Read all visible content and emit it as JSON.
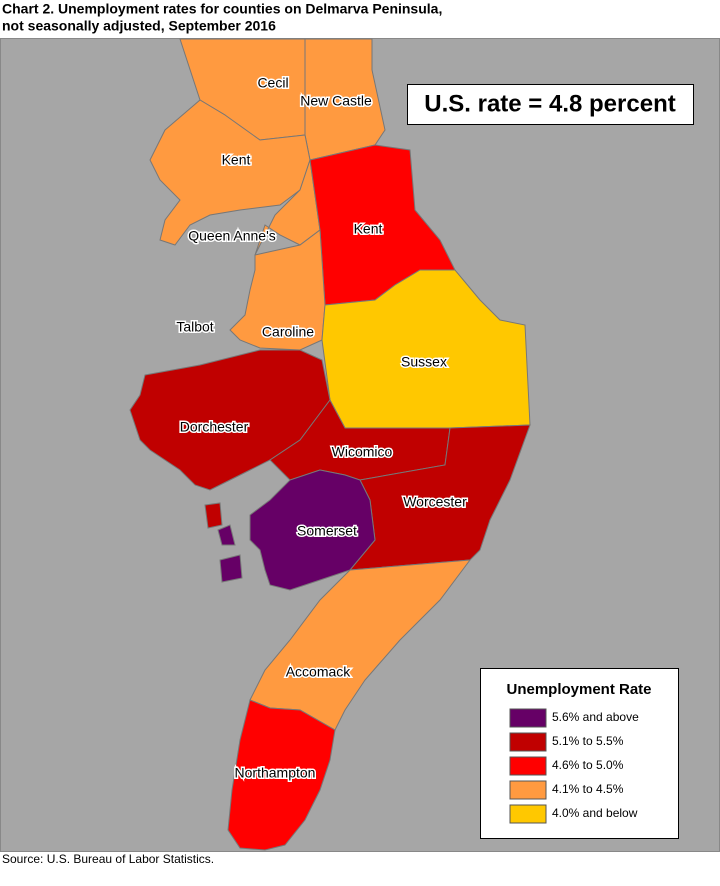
{
  "header": {
    "title_line1": "Chart 2. Unemployment rates for counties on Delmarva Peninsula,",
    "title_line2": "not seasonally adjusted, September 2016"
  },
  "note": "U.S. rate = 4.8 percent",
  "counties": [
    {
      "label": "Cecil"
    },
    {
      "label": "New Castle"
    },
    {
      "label": "Kent"
    },
    {
      "label": "Kent"
    },
    {
      "label": "Queen Anne's"
    },
    {
      "label": "Talbot"
    },
    {
      "label": "Caroline"
    },
    {
      "label": "Sussex"
    },
    {
      "label": "Dorchester"
    },
    {
      "label": "Wicomico"
    },
    {
      "label": "Worcester"
    },
    {
      "label": "Somerset"
    },
    {
      "label": "Accomack"
    },
    {
      "label": "Northampton"
    }
  ],
  "legend": {
    "title": "Unemployment Rate",
    "items": [
      {
        "label": "5.6% and above",
        "color": "#660066"
      },
      {
        "label": "5.1% to 5.5%",
        "color": "#c00000"
      },
      {
        "label": "4.6% to 5.0%",
        "color": "#ff0000"
      },
      {
        "label": "4.1% to 4.5%",
        "color": "#ff9a40"
      },
      {
        "label": "4.0% and below",
        "color": "#ffc800"
      }
    ]
  },
  "source": "Source: U.S. Bureau of Labor Statistics."
}
